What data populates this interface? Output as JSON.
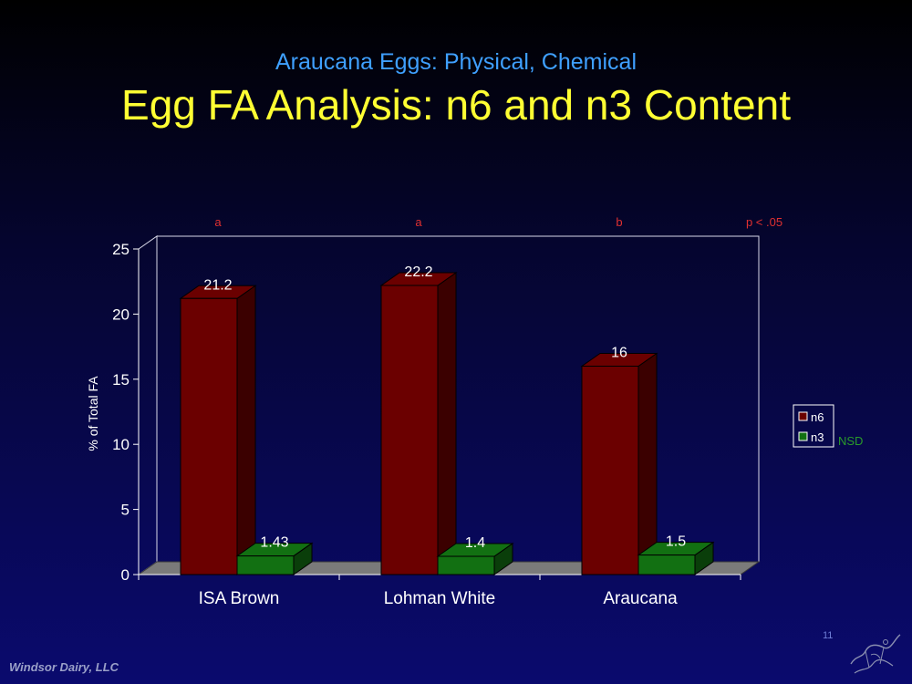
{
  "slide": {
    "subtitle": "Araucana Eggs: Physical, Chemical",
    "title": "Egg FA Analysis: n6 and n3 Content",
    "footer": "Windsor Dairy, LLC",
    "slide_number": "11"
  },
  "chart_data": {
    "type": "bar",
    "categories": [
      "ISA Brown",
      "Lohman White",
      "Araucana"
    ],
    "series": [
      {
        "name": "n6",
        "values": [
          21.2,
          22.2,
          16
        ],
        "labels": [
          "21.2",
          "22.2",
          "16"
        ],
        "color": "#6b0000"
      },
      {
        "name": "n3",
        "values": [
          1.43,
          1.4,
          1.5
        ],
        "labels": [
          "1.43",
          "1.4",
          "1.5"
        ],
        "color": "#127012"
      }
    ],
    "ylabel": "% of Total FA",
    "xlabel": "",
    "ylim": [
      0,
      25
    ],
    "yticks": [
      "0",
      "5",
      "10",
      "15",
      "20",
      "25"
    ],
    "style": "3d-column",
    "legend_position": "right",
    "significance": {
      "n6_letters": [
        "a",
        "a",
        "b"
      ],
      "n6_note": "p < .05",
      "n3_note": "NSD"
    },
    "colors": {
      "significance_n6": "#e03030",
      "significance_n3": "#2a9a2a",
      "axis": "#ffffff"
    }
  }
}
